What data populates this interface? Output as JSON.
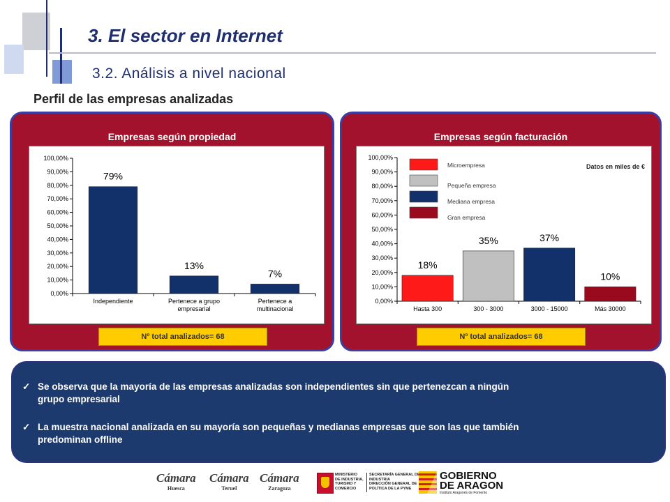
{
  "header": {
    "title": "3. El sector en Internet",
    "subtitle": "3.2. Análisis a nivel nacional",
    "section_title": "Perfil de las empresas analizadas"
  },
  "colors": {
    "panel_bg": "#a3122d",
    "panel_border": "#3a3ea2",
    "bar_blue": "#12316b",
    "bar_red": "#ff1a1a",
    "bar_grey": "#c0c0c0",
    "bar_darkred": "#990a1e",
    "total_box": "#ffcc00",
    "bottom_box": "#1c3a6e"
  },
  "left_panel": {
    "title": "Empresas según propiedad",
    "total_label": "Nº total analizados= 68"
  },
  "right_panel": {
    "title": "Empresas según facturación",
    "total_label": "Nº total analizados= 68",
    "note": "Datos en miles de €"
  },
  "chart_data": [
    {
      "type": "bar",
      "title": "Empresas según propiedad",
      "categories": [
        "Independiente",
        "Pertenece a grupo empresarial",
        "Pertenece a multinacional"
      ],
      "category_lines": [
        [
          "Independiente"
        ],
        [
          "Pertenece a grupo",
          "empresarial"
        ],
        [
          "Pertenece a",
          "multinacional"
        ]
      ],
      "values": [
        79,
        13,
        7
      ],
      "data_labels": [
        "79%",
        "13%",
        "7%"
      ],
      "ylim": [
        0,
        100
      ],
      "yticks": [
        "0,00%",
        "10,00%",
        "20,00%",
        "30,00%",
        "40,00%",
        "50,00%",
        "60,00%",
        "70,00%",
        "80,00%",
        "90,00%",
        "100,00%"
      ],
      "xlabel": "",
      "ylabel": "",
      "grid": false,
      "legend": null
    },
    {
      "type": "bar",
      "title": "Empresas según facturación",
      "categories": [
        "Hasta 300",
        "300 - 3000",
        "3000 - 15000",
        "Más 30000"
      ],
      "values": [
        18,
        35,
        37,
        10
      ],
      "data_labels": [
        "18%",
        "35%",
        "37%",
        "10%"
      ],
      "series_names": [
        "Microempresa",
        "Pequeña empresa",
        "Mediana empresa",
        "Gran empresa"
      ],
      "bar_colors": [
        "#ff1a1a",
        "#c0c0c0",
        "#12316b",
        "#990a1e"
      ],
      "ylim": [
        0,
        100
      ],
      "yticks": [
        "0,00%",
        "10,00%",
        "20,00%",
        "30,00%",
        "40,00%",
        "50,00%",
        "60,00%",
        "70,00%",
        "80,00%",
        "90,00%",
        "100,00%"
      ],
      "xlabel": "",
      "ylabel": "",
      "grid": false,
      "legend": "top-left",
      "annotation": "Datos en miles de €"
    }
  ],
  "bullets": [
    {
      "check": "✓",
      "line1": "Se observa que la mayoría de las empresas analizadas son independientes sin que pertenezcan a ningún",
      "line2": "grupo empresarial"
    },
    {
      "check": "✓",
      "line1": "La muestra nacional analizada en su mayoría son pequeñas y medianas empresas que son las que también",
      "line2": "predominan offline"
    }
  ],
  "logos": {
    "camara1": {
      "name": "Cámara",
      "city": "Huesca"
    },
    "camara2": {
      "name": "Cámara",
      "city": "Teruel"
    },
    "camara3": {
      "name": "Cámara",
      "city": "Zaragoza"
    },
    "ministerio": [
      "MINISTERIO",
      "DE INDUSTRIA,",
      "TURISMO Y",
      "COMERCIO"
    ],
    "secretaria": [
      "SECRETARÍA GENERAL DE",
      "INDUSTRIA",
      "DIRECCIÓN GENERAL DE",
      "POLÍTICA DE LA PYME"
    ],
    "gobierno": [
      "GOBIERNO",
      "DE ARAGON"
    ],
    "gobierno_sub": "Instituto Aragonés de Fomento"
  }
}
